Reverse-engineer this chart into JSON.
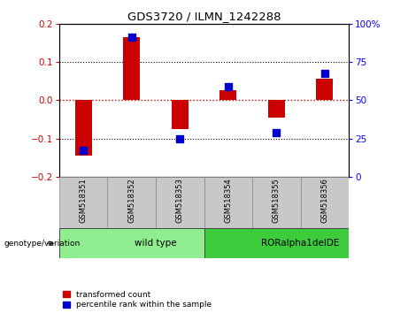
{
  "title": "GDS3720 / ILMN_1242288",
  "samples": [
    "GSM518351",
    "GSM518352",
    "GSM518353",
    "GSM518354",
    "GSM518355",
    "GSM518356"
  ],
  "red_bars": [
    -0.145,
    0.165,
    -0.075,
    0.025,
    -0.045,
    0.055
  ],
  "blue_dots": [
    -0.13,
    0.165,
    -0.1,
    0.035,
    -0.085,
    0.07
  ],
  "ylim": [
    -0.2,
    0.2
  ],
  "right_ylim": [
    0,
    100
  ],
  "right_yticks": [
    0,
    25,
    50,
    75,
    100
  ],
  "right_yticklabels": [
    "0",
    "25",
    "50",
    "75",
    "100%"
  ],
  "left_yticks": [
    -0.2,
    -0.1,
    0.0,
    0.1,
    0.2
  ],
  "groups": [
    {
      "label": "wild type",
      "start": 0,
      "end": 3,
      "color": "#90EE90"
    },
    {
      "label": "RORalpha1delDE",
      "start": 3,
      "end": 6,
      "color": "#3CCC3C"
    }
  ],
  "group_row_label": "genotype/variation",
  "legend_red": "transformed count",
  "legend_blue": "percentile rank within the sample",
  "red_color": "#CC0000",
  "blue_color": "#0000CC",
  "zero_line_color": "#CC0000",
  "dotted_line_color": "#000000",
  "bar_width": 0.35,
  "dot_size": 35,
  "bg_color": "#FFFFFF",
  "gray_color": "#C8C8C8"
}
